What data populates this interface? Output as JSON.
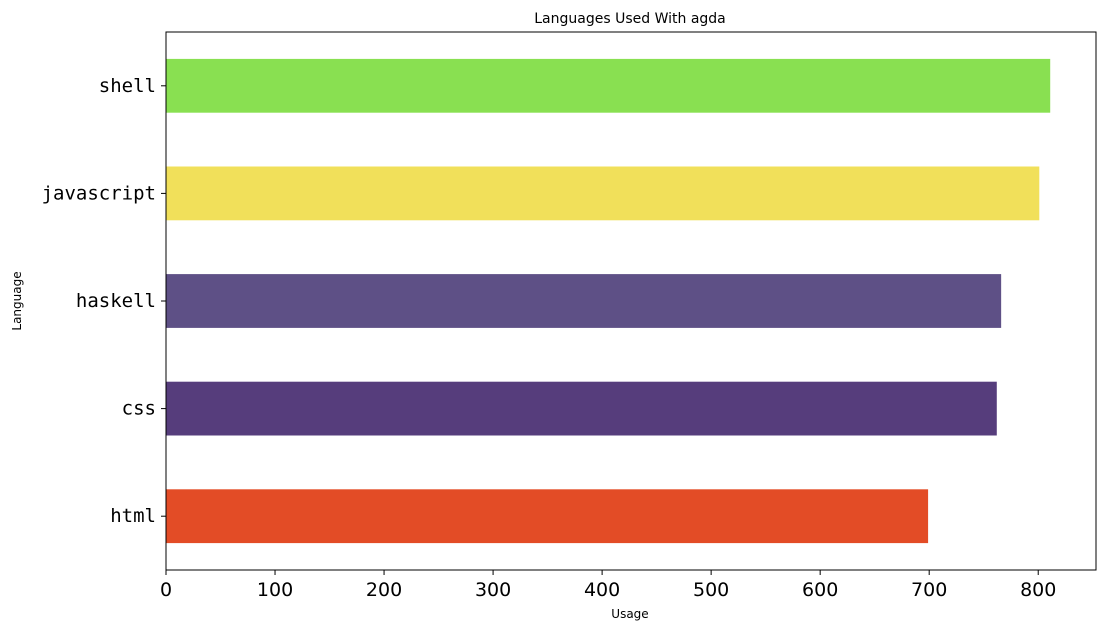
{
  "chart_data": {
    "type": "bar",
    "orientation": "horizontal",
    "title": "Languages Used With agda",
    "xlabel": "Usage",
    "ylabel": "Language",
    "categories": [
      "html",
      "css",
      "haskell",
      "javascript",
      "shell"
    ],
    "values": [
      699,
      762,
      766,
      801,
      811
    ],
    "colors": [
      "#e34c26",
      "#563d7c",
      "#5e5086",
      "#f1e05a",
      "#89e051"
    ],
    "xlim": [
      0,
      853
    ],
    "xticks": [
      0,
      100,
      200,
      300,
      400,
      500,
      600,
      700,
      800
    ],
    "grid": false,
    "legend": "none"
  }
}
